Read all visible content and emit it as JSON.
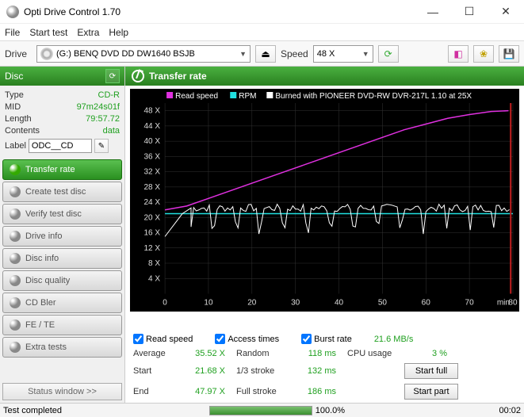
{
  "window": {
    "title": "Opti Drive Control 1.70"
  },
  "menu": {
    "file": "File",
    "start": "Start test",
    "extra": "Extra",
    "help": "Help"
  },
  "toolbar": {
    "drive_label": "Drive",
    "drive_value": "(G:)   BENQ DVD DD DW1640 BSJB",
    "speed_label": "Speed",
    "speed_value": "48 X"
  },
  "disc_panel": {
    "header": "Disc",
    "type_label": "Type",
    "type_value": "CD-R",
    "mid_label": "MID",
    "mid_value": "97m24s01f",
    "length_label": "Length",
    "length_value": "79:57.72",
    "contents_label": "Contents",
    "contents_value": "data",
    "label_label": "Label",
    "label_value": "ODC__CD"
  },
  "nav": {
    "items": [
      "Transfer rate",
      "Create test disc",
      "Verify test disc",
      "Drive info",
      "Disc info",
      "Disc quality",
      "CD Bler",
      "FE / TE",
      "Extra tests"
    ],
    "status_window": "Status window  >>"
  },
  "chart": {
    "header": "Transfer rate",
    "legend_read": "Read speed",
    "legend_rpm": "RPM",
    "legend_burn": "Burned with PIONEER DVD-RW   DVR-217L 1.10 at 25X",
    "colors": {
      "read": "#e030e0",
      "rpm": "#20e0e0",
      "burn": "#ffffff",
      "bg": "#000000",
      "grid": "#333333",
      "axis_text": "#dddddd",
      "end_marker": "#c02020"
    },
    "x_label": "min",
    "x_ticks": [
      0,
      10,
      20,
      30,
      40,
      50,
      60,
      70,
      80
    ],
    "xlim": [
      0,
      80
    ],
    "y_ticks": [
      4,
      8,
      12,
      16,
      20,
      24,
      28,
      32,
      36,
      40,
      44,
      48
    ],
    "y_tick_labels": [
      "4 X",
      "8 X",
      "12 X",
      "16 X",
      "20 X",
      "24 X",
      "28 X",
      "32 X",
      "36 X",
      "40 X",
      "44 X",
      "48 X"
    ],
    "ylim": [
      0,
      50
    ],
    "read_series": [
      [
        0,
        22
      ],
      [
        5,
        23
      ],
      [
        10,
        25
      ],
      [
        15,
        27
      ],
      [
        20,
        29
      ],
      [
        25,
        31
      ],
      [
        30,
        33
      ],
      [
        35,
        35
      ],
      [
        40,
        37
      ],
      [
        45,
        39
      ],
      [
        50,
        41
      ],
      [
        55,
        43
      ],
      [
        60,
        44.5
      ],
      [
        65,
        46
      ],
      [
        70,
        47
      ],
      [
        75,
        47.8
      ],
      [
        79,
        48
      ]
    ],
    "rpm_series": [
      [
        0,
        21
      ],
      [
        80,
        21
      ]
    ],
    "burn_series_base": 22.5,
    "burn_series_noise": 5,
    "burn_leadin": [
      [
        0,
        15
      ],
      [
        2,
        18
      ],
      [
        4,
        21
      ],
      [
        6,
        22.5
      ]
    ]
  },
  "checks": {
    "read_label": "Read speed",
    "access_label": "Access times",
    "burst_label": "Burst rate",
    "burst_value": "21.6 MB/s"
  },
  "stats": {
    "avg_label": "Average",
    "avg_value": "35.52 X",
    "start_label": "Start",
    "start_value": "21.68 X",
    "end_label": "End",
    "end_value": "47.97 X",
    "random_label": "Random",
    "random_value": "118 ms",
    "third_label": "1/3 stroke",
    "third_value": "132 ms",
    "full_label": "Full stroke",
    "full_value": "186 ms",
    "cpu_label": "CPU usage",
    "cpu_value": "3 %",
    "start_full_btn": "Start full",
    "start_part_btn": "Start part"
  },
  "status": {
    "text": "Test completed",
    "pct": "100.0%",
    "time": "00:02"
  }
}
